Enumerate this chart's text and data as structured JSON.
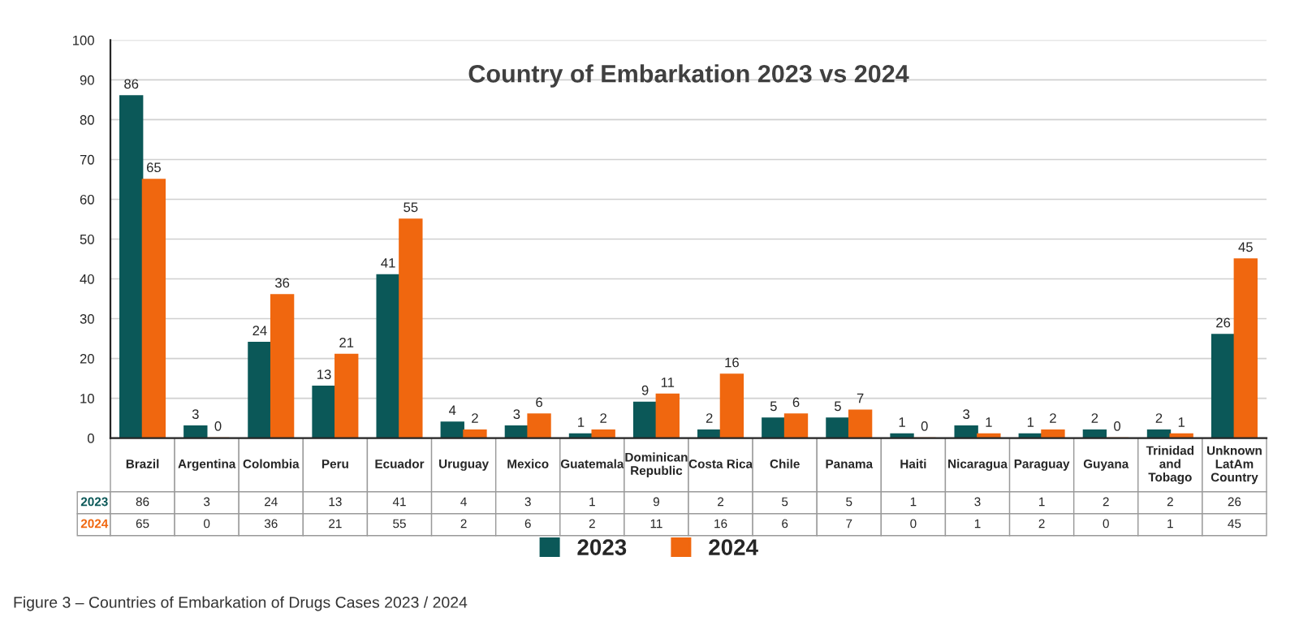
{
  "chart_data": {
    "type": "bar",
    "title": "Country of Embarkation 2023 vs 2024",
    "categories": [
      "Brazil",
      "Argentina",
      "Colombia",
      "Peru",
      "Ecuador",
      "Uruguay",
      "Mexico",
      "Guatemala",
      "Dominican Republic",
      "Costa Rica",
      "Chile",
      "Panama",
      "Haiti",
      "Nicaragua",
      "Paraguay",
      "Guyana",
      "Trinidad and Tobago",
      "Unknown LatAm Country"
    ],
    "series": [
      {
        "name": "2023",
        "color": "#0b5858",
        "values": [
          86,
          3,
          24,
          13,
          41,
          4,
          3,
          1,
          9,
          2,
          5,
          5,
          1,
          3,
          1,
          2,
          2,
          26
        ],
        "value_labels": [
          "86",
          "3",
          "24",
          "13",
          "41",
          "4",
          "3",
          "1",
          "9",
          "2",
          "5",
          "5",
          "1",
          "3",
          "1",
          "2",
          "2",
          "26"
        ]
      },
      {
        "name": "2024",
        "color": "#f0670f",
        "values": [
          65,
          0,
          36,
          21,
          55,
          2,
          6,
          2,
          11,
          16,
          6,
          7,
          0,
          1,
          2,
          0,
          1,
          45
        ],
        "value_labels": [
          "65",
          "0",
          "36",
          "21",
          "55",
          "2",
          "6",
          "2",
          "11",
          "16",
          "6",
          "7",
          "0",
          "1",
          "2",
          "0",
          "1",
          "45"
        ]
      }
    ],
    "ylim": [
      0,
      100
    ],
    "yticks": [
      0,
      10,
      20,
      30,
      40,
      50,
      60,
      70,
      80,
      90,
      100
    ],
    "grid": "y",
    "legend": "bottom",
    "annotations": [
      "Figure 3 – Countries of Embarkation of Drugs Cases 2023 / 2024"
    ]
  }
}
